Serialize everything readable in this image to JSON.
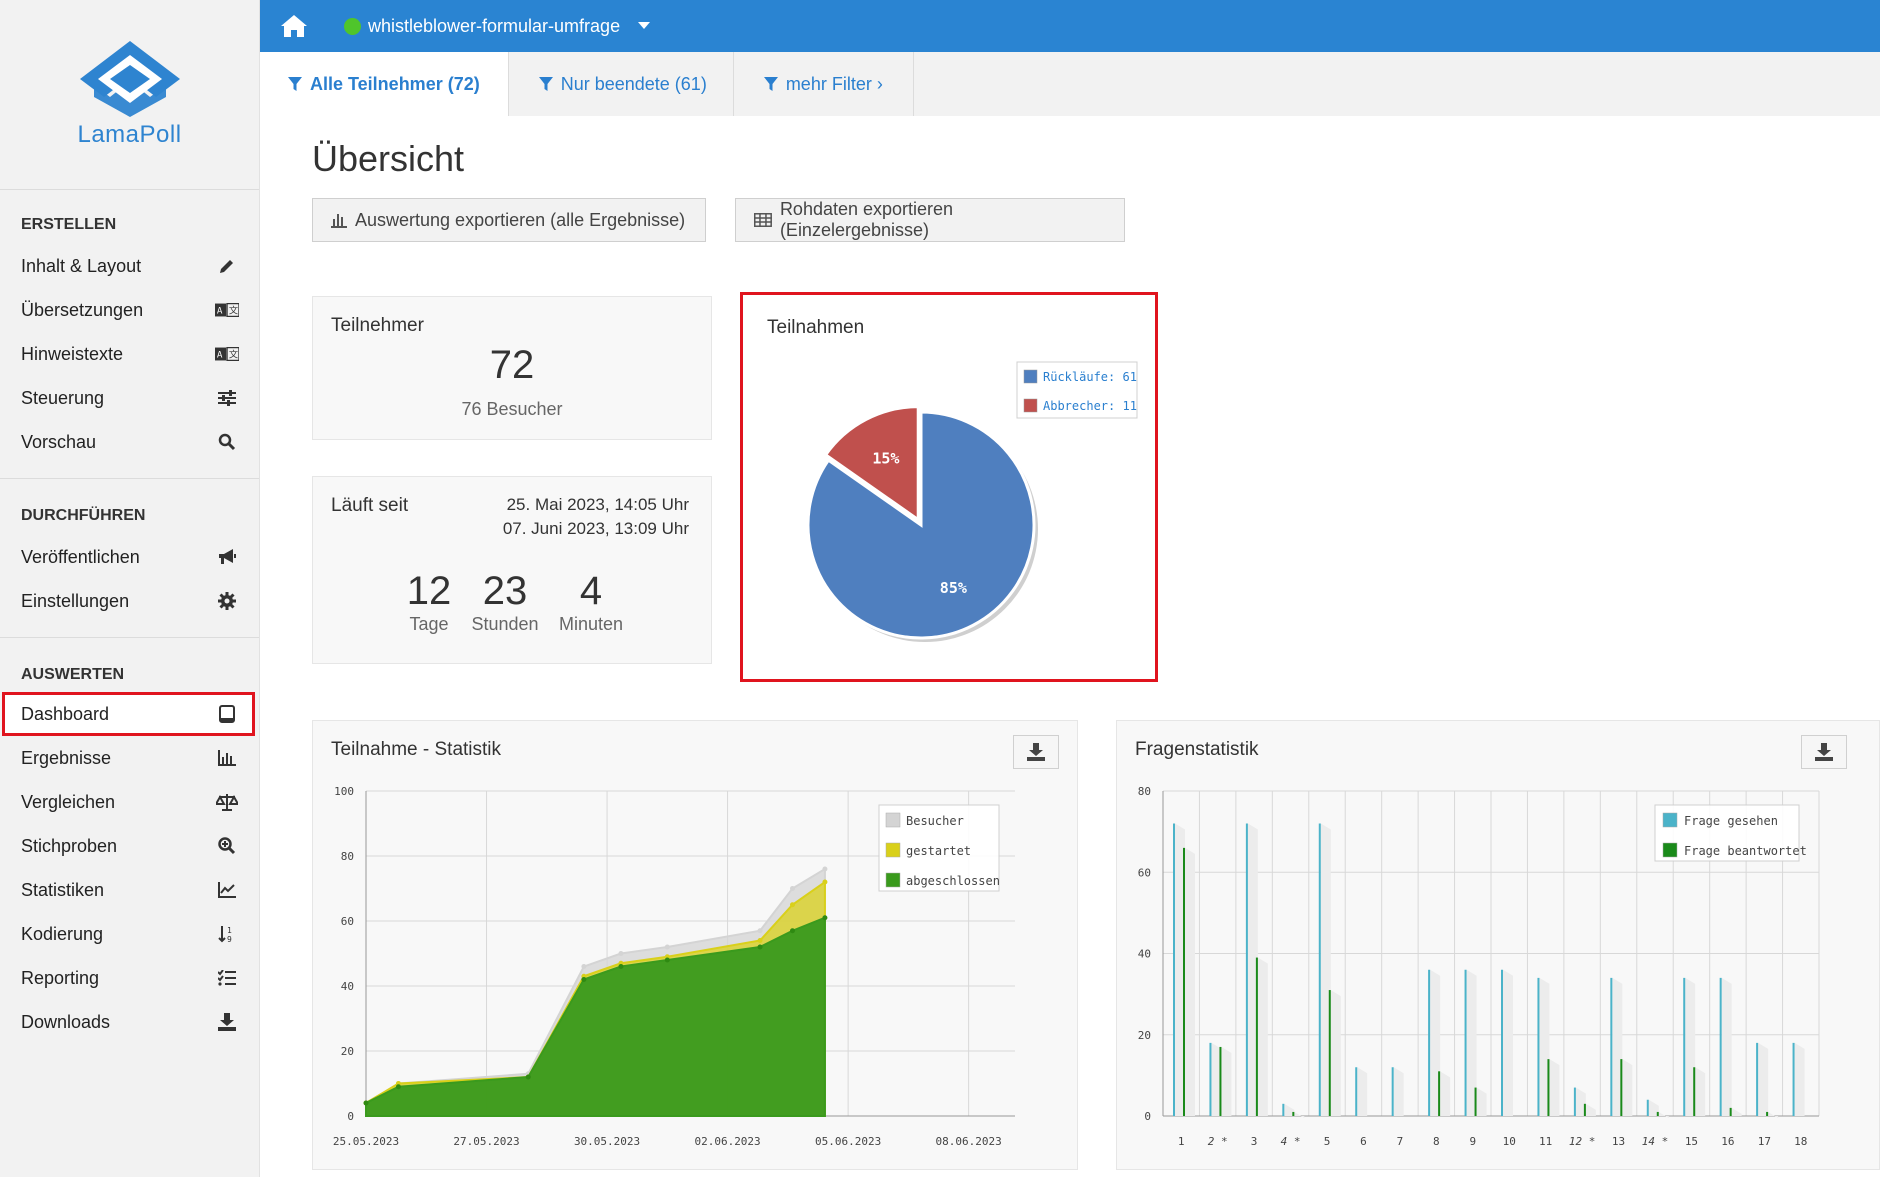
{
  "brand": {
    "name": "LamaPoll"
  },
  "topbar": {
    "survey_name": "whistleblower-formular-umfrage",
    "status_color": "#4fc52b"
  },
  "tabs": [
    {
      "label": "Alle Teilnehmer (72)"
    },
    {
      "label": "Nur beendete (61)"
    },
    {
      "label": "mehr Filter ›"
    }
  ],
  "sidebar": {
    "sections": [
      {
        "title": "ERSTELLEN"
      },
      {
        "title": "DURCHFÜHREN"
      },
      {
        "title": "AUSWERTEN"
      }
    ],
    "items": [
      {
        "label": "Inhalt & Layout",
        "icon": "pencil-icon"
      },
      {
        "label": "Übersetzungen",
        "icon": "translate-icon"
      },
      {
        "label": "Hinweistexte",
        "icon": "translate-icon"
      },
      {
        "label": "Steuerung",
        "icon": "sliders-icon"
      },
      {
        "label": "Vorschau",
        "icon": "search-icon"
      },
      {
        "label": "Veröffentlichen",
        "icon": "megaphone-icon"
      },
      {
        "label": "Einstellungen",
        "icon": "gear-icon"
      },
      {
        "label": "Dashboard",
        "icon": "tablet-icon"
      },
      {
        "label": "Ergebnisse",
        "icon": "bar-chart-icon"
      },
      {
        "label": "Vergleichen",
        "icon": "balance-icon"
      },
      {
        "label": "Stichproben",
        "icon": "zoom-in-icon"
      },
      {
        "label": "Statistiken",
        "icon": "line-chart-icon"
      },
      {
        "label": "Kodierung",
        "icon": "sort-icon"
      },
      {
        "label": "Reporting",
        "icon": "list-check-icon"
      },
      {
        "label": "Downloads",
        "icon": "download-icon"
      }
    ]
  },
  "main": {
    "title": "Übersicht",
    "export_results_label": "Auswertung exportieren (alle Ergebnisse)",
    "export_raw_label": "Rohdaten exportieren (Einzelergebnisse)"
  },
  "participants_card": {
    "title": "Teilnehmer",
    "count": "72",
    "visitors": "76 Besucher"
  },
  "runtime_card": {
    "title": "Läuft seit",
    "start": "25. Mai 2023, 14:05 Uhr",
    "end": "07. Juni 2023, 13:09 Uhr",
    "days": "12",
    "days_label": "Tage",
    "hours": "23",
    "hours_label": "Stunden",
    "minutes": "4",
    "minutes_label": "Minuten"
  },
  "chart_data": [
    {
      "type": "pie",
      "title": "Teilnahmen",
      "slices": [
        {
          "label": "Rückläufe: 61",
          "value": 61,
          "pct_label": "85%",
          "color": "#4f7fbf"
        },
        {
          "label": "Abbrecher: 11",
          "value": 11,
          "pct_label": "15%",
          "color": "#c0504d"
        }
      ],
      "legend": "top-right"
    },
    {
      "type": "area",
      "title": "Teilnahme - Statistik",
      "xlabels": [
        "25.05.2023",
        "27.05.2023",
        "30.05.2023",
        "02.06.2023",
        "05.06.2023",
        "08.06.2023"
      ],
      "ylim": [
        0,
        100
      ],
      "yticks": [
        0,
        20,
        40,
        60,
        80,
        100
      ],
      "x_days": [
        0,
        0.7,
        3.5,
        4.7,
        5.5,
        6.5,
        8.5,
        9.2,
        9.9
      ],
      "series": [
        {
          "name": "Besucher",
          "color": "#d4d4d4",
          "values": [
            4,
            10,
            13,
            46,
            50,
            52,
            57,
            70,
            76
          ]
        },
        {
          "name": "gestartet",
          "color": "#d9d01a",
          "values": [
            4,
            10,
            12,
            43,
            47,
            49,
            54,
            65,
            72
          ]
        },
        {
          "name": "abgeschlossen",
          "color": "#3a9a1d",
          "values": [
            4,
            9,
            12,
            42,
            46,
            48,
            52,
            57,
            61
          ]
        }
      ],
      "legend": "top-right",
      "grid": true
    },
    {
      "type": "bar",
      "title": "Fragenstatistik",
      "categories": [
        "1",
        "2 *",
        "3",
        "4 *",
        "5",
        "6",
        "7",
        "8",
        "9",
        "10",
        "11",
        "12 *",
        "13",
        "14 *",
        "15",
        "16",
        "17",
        "18"
      ],
      "ylim": [
        0,
        80
      ],
      "yticks": [
        0,
        20,
        40,
        60,
        80
      ],
      "series": [
        {
          "name": "Frage gesehen",
          "color": "#4bb3c9",
          "values": [
            72,
            18,
            72,
            3,
            72,
            12,
            12,
            36,
            36,
            36,
            34,
            7,
            34,
            4,
            34,
            34,
            18,
            18
          ]
        },
        {
          "name": "Frage beantwortet",
          "color": "#1a8a1a",
          "values": [
            66,
            17,
            39,
            1,
            31,
            0,
            0,
            11,
            7,
            0,
            14,
            3,
            14,
            1,
            12,
            2,
            1,
            0
          ]
        }
      ],
      "legend": "top-right",
      "grid": true
    }
  ]
}
